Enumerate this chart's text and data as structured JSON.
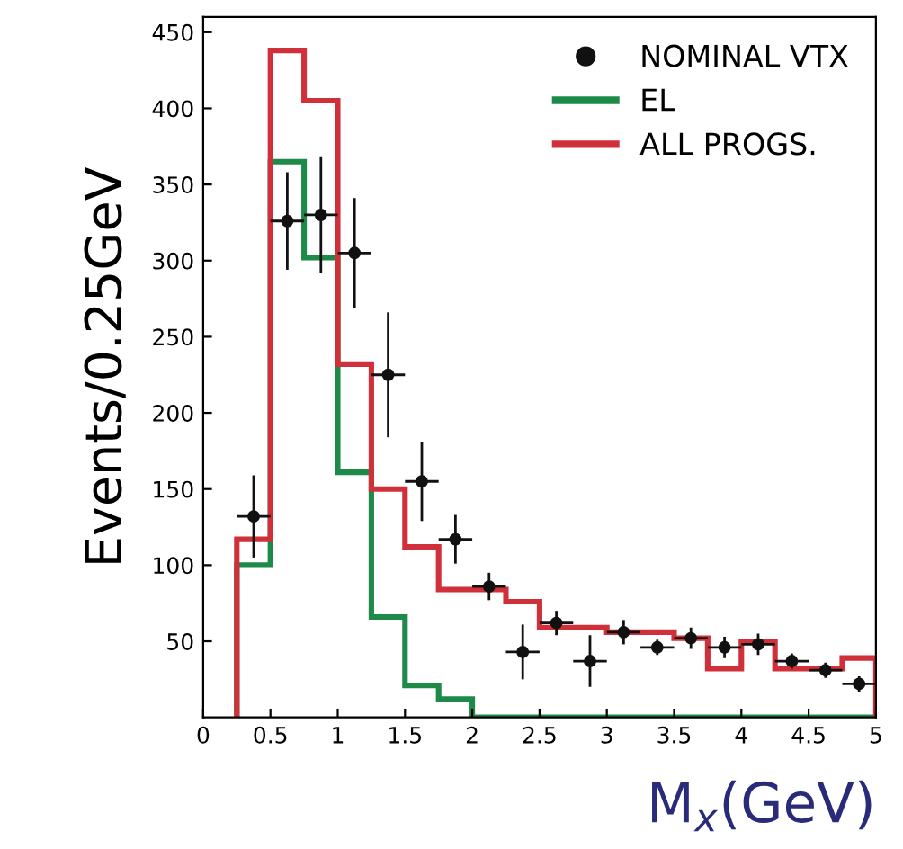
{
  "chart_data": {
    "type": "histogram",
    "xlabel": "M$_{x}$(GeV)",
    "ylabel": "Events/0.25GeV",
    "bins": [
      0.25,
      0.5,
      0.75,
      1,
      1.25,
      1.5,
      1.75,
      2,
      2.25,
      2.5,
      2.75,
      3,
      3.25,
      3.5,
      3.75,
      4,
      4.25,
      4.5,
      4.75,
      5
    ],
    "series": [
      {
        "name": "NOMINAL VTX",
        "type": "scatter",
        "color": "#111111",
        "marker": "circle",
        "x": [
          0.375,
          0.625,
          0.875,
          1.125,
          1.375,
          1.625,
          1.875,
          2.125,
          2.375,
          2.625,
          2.875,
          3.125,
          3.375,
          3.625,
          3.875,
          4.125,
          4.375,
          4.625,
          4.875
        ],
        "values": [
          132,
          326,
          330,
          305,
          225,
          155,
          117,
          86,
          43,
          62,
          37,
          56,
          46,
          52,
          46,
          48,
          37,
          31,
          22
        ],
        "errors": [
          27,
          32,
          38,
          36,
          41,
          26,
          16,
          9,
          18,
          8,
          17,
          8,
          5,
          7,
          7,
          7,
          5,
          5,
          5
        ],
        "xerrors": [
          0.125,
          0.125,
          0.125,
          0.125,
          0.125,
          0.125,
          0.125,
          0.125,
          0.125,
          0.125,
          0.125,
          0.125,
          0.125,
          0.125,
          0.125,
          0.125,
          0.125,
          0.125,
          0.125
        ]
      },
      {
        "name": "EL",
        "color": "#1e8a4a",
        "values": [
          100,
          365,
          302,
          161,
          66,
          21,
          12,
          0,
          0,
          0,
          0,
          0,
          0,
          0,
          0,
          0,
          0,
          0,
          0
        ]
      },
      {
        "name": "ALL PROGS.",
        "color": "#d0303a",
        "values": [
          117,
          438,
          405,
          232,
          150,
          112,
          84,
          84,
          76,
          59,
          59,
          56,
          56,
          52,
          32,
          50,
          32,
          32,
          39
        ]
      }
    ],
    "xlim": [
      0,
      5
    ],
    "ylim": [
      0,
      460
    ],
    "xticks": [
      0,
      0.5,
      1,
      1.5,
      2,
      2.5,
      3,
      3.5,
      4,
      4.5,
      5
    ],
    "yticks": [
      50,
      100,
      150,
      200,
      250,
      300,
      350,
      400,
      450
    ],
    "grid": false,
    "legend": "top right"
  }
}
